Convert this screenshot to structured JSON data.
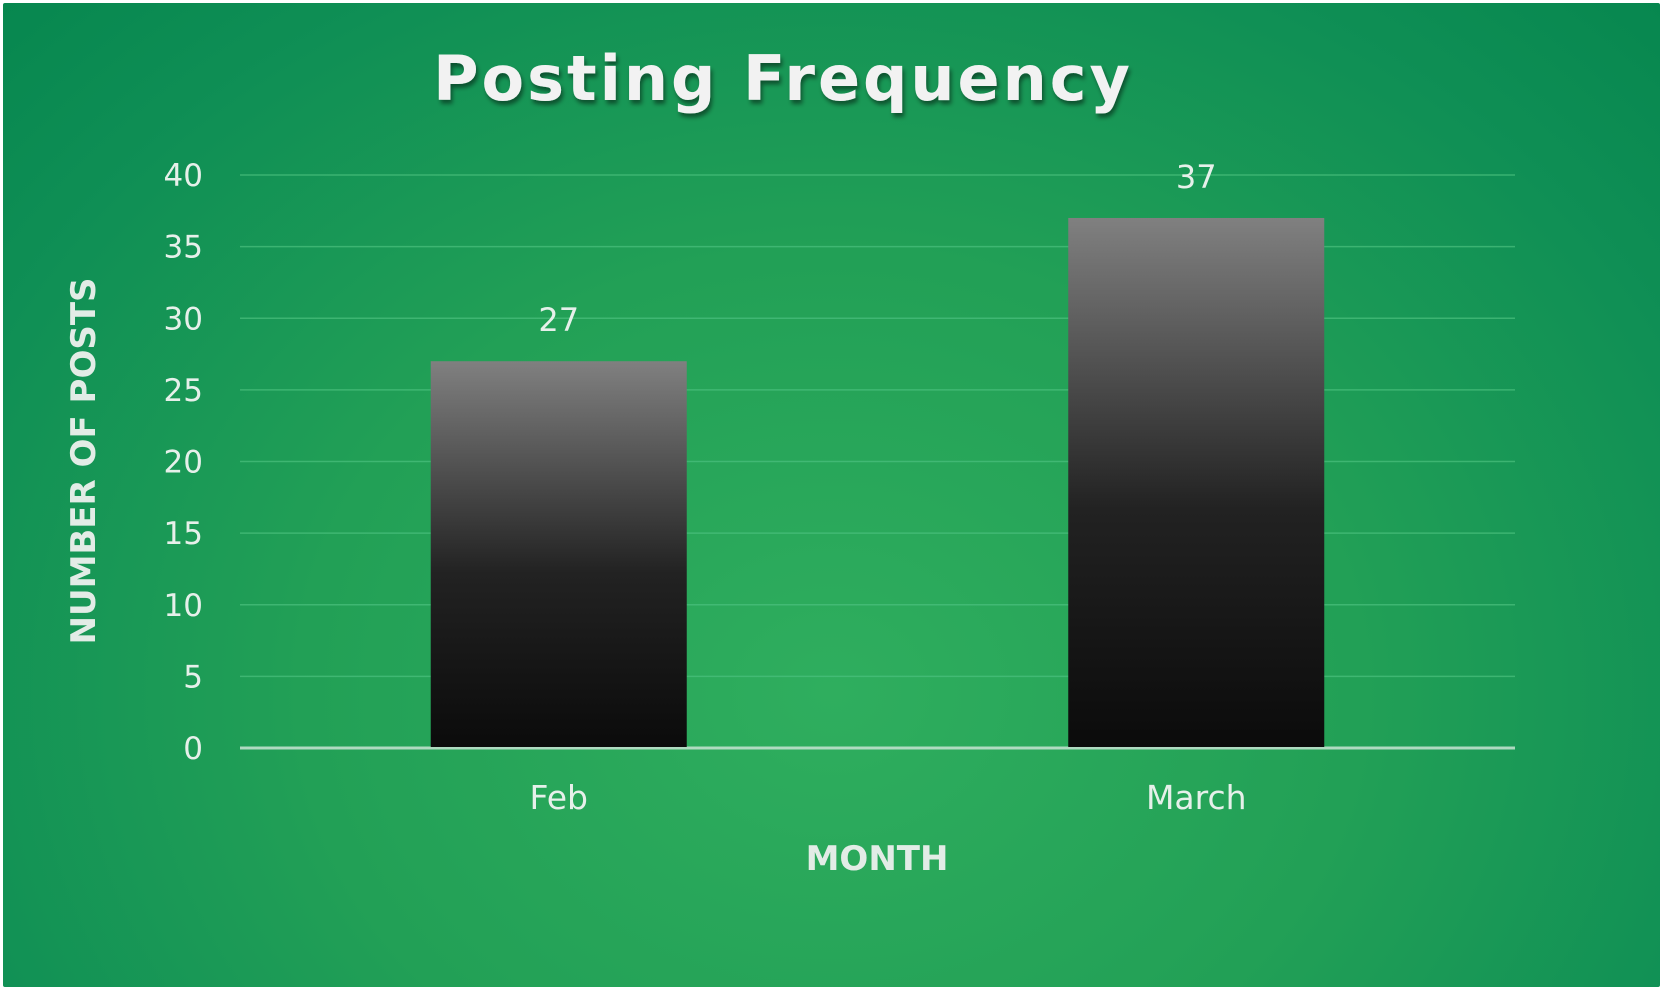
{
  "chart_data": {
    "type": "bar",
    "title": "Posting Frequency",
    "xlabel": "MONTH",
    "ylabel": "NUMBER OF POSTS",
    "categories": [
      "Feb",
      "March"
    ],
    "values": [
      27,
      37
    ],
    "ylim": [
      0,
      40
    ],
    "yticks": [
      0,
      5,
      10,
      15,
      20,
      25,
      30,
      35,
      40
    ],
    "data_labels": [
      "27",
      "37"
    ],
    "grid": true,
    "legend": "none",
    "colors": {
      "background": "#22a056",
      "bar_top": "#7f7f7f",
      "bar_bottom": "#0d0d0d",
      "gridline": "#4cc07f",
      "text": "#e6f0ea"
    }
  }
}
